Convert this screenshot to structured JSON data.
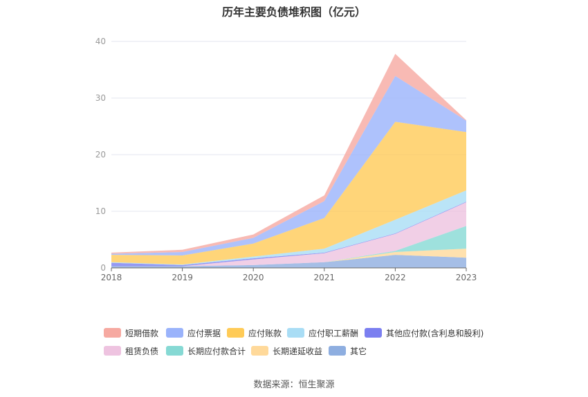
{
  "chart_data": {
    "type": "area",
    "stacked": true,
    "title": "历年主要负债堆积图（亿元）",
    "source": "数据来源：恒生聚源",
    "x": [
      "2018",
      "2019",
      "2020",
      "2021",
      "2022",
      "2023"
    ],
    "ylim": [
      0,
      40
    ],
    "yticks": [
      "0",
      "10",
      "20",
      "30",
      "40"
    ],
    "grid": true,
    "legend_position": "bottom",
    "series": [
      {
        "name": "其它",
        "color": "#8eaee0",
        "values": [
          0.3,
          0.3,
          0.5,
          1.0,
          2.3,
          1.8
        ]
      },
      {
        "name": "长期递延收益",
        "color": "#ffd99a",
        "values": [
          0.0,
          0.0,
          0.0,
          0.0,
          0.5,
          1.6
        ]
      },
      {
        "name": "长期应付款合计",
        "color": "#86d9d4",
        "values": [
          0.0,
          0.0,
          0.0,
          0.0,
          0.2,
          4.0
        ]
      },
      {
        "name": "租赁负债",
        "color": "#eec3e0",
        "values": [
          0.0,
          0.0,
          1.0,
          1.6,
          3.0,
          4.2
        ]
      },
      {
        "name": "其他应付款(含利息和股利)",
        "color": "#7b7ff0",
        "values": [
          0.6,
          0.2,
          0.2,
          0.1,
          0.1,
          0.1
        ]
      },
      {
        "name": "应付职工薪酬",
        "color": "#a9ddf5",
        "values": [
          0.1,
          0.1,
          0.3,
          0.7,
          2.4,
          2.0
        ]
      },
      {
        "name": "应付账款",
        "color": "#ffcb57",
        "values": [
          1.3,
          1.6,
          2.3,
          5.4,
          17.3,
          10.3
        ]
      },
      {
        "name": "应付票据",
        "color": "#9ab3fb",
        "values": [
          0.2,
          0.6,
          1.0,
          3.0,
          8.1,
          2.0
        ]
      },
      {
        "name": "短期借款",
        "color": "#f6a9a1",
        "values": [
          0.2,
          0.4,
          0.6,
          1.0,
          3.9,
          0.1
        ]
      }
    ]
  },
  "legend": {
    "row1": [
      "短期借款",
      "应付票据",
      "应付账款",
      "应付职工薪酬",
      "其他应付款(含利息和股利)"
    ],
    "row2": [
      "租赁负债",
      "长期应付款合计",
      "长期递延收益",
      "其它"
    ]
  }
}
